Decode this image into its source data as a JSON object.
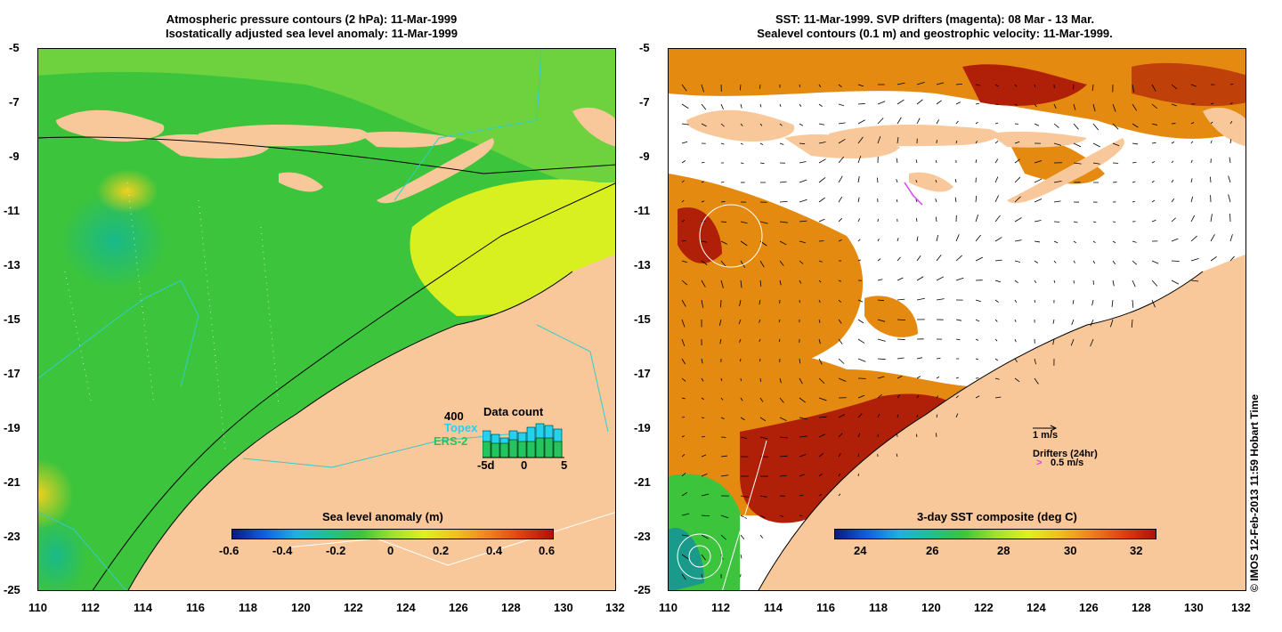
{
  "left_panel": {
    "title_line1": "Atmospheric pressure contours (2 hPa): 11-Mar-1999",
    "title_line2": "Isostatically adjusted sea level anomaly: 11-Mar-1999",
    "y_ticks": [
      "-5",
      "-7",
      "-9",
      "-11",
      "-13",
      "-15",
      "-17",
      "-19",
      "-21",
      "-23",
      "-25"
    ],
    "x_ticks": [
      "110",
      "112",
      "114",
      "116",
      "118",
      "120",
      "122",
      "124",
      "126",
      "128",
      "130",
      "132"
    ],
    "colorbar": {
      "label": "Sea level anomaly (m)",
      "ticks": [
        "-0.6",
        "-0.4",
        "-0.2",
        "0",
        "0.2",
        "0.4",
        "0.6"
      ]
    },
    "data_count": {
      "title": "Data count",
      "scale_label": "400",
      "legend": [
        {
          "name": "Topex",
          "color": "#22d3ee"
        },
        {
          "name": "ERS-2",
          "color": "#22c55e"
        }
      ],
      "x_ticks": [
        "-5d",
        "0",
        "5"
      ]
    }
  },
  "right_panel": {
    "title_line1": "SST: 11-Mar-1999. SVP drifters (magenta): 08 Mar - 13 Mar.",
    "title_line2": "Sealevel contours (0.1 m) and geostrophic velocity: 11-Mar-1999.",
    "y_ticks": [
      "-5",
      "-7",
      "-9",
      "-11",
      "-13",
      "-15",
      "-17",
      "-19",
      "-21",
      "-23",
      "-25"
    ],
    "x_ticks": [
      "110",
      "112",
      "114",
      "116",
      "118",
      "120",
      "122",
      "124",
      "126",
      "128",
      "130",
      "132"
    ],
    "colorbar": {
      "label": "3-day SST composite (deg C)",
      "ticks": [
        "24",
        "26",
        "28",
        "30",
        "32"
      ]
    },
    "velocity_legend": {
      "speed_label": "1 m/s",
      "drifters_label": "Drifters (24hr)",
      "drifter_speed_label": "0.5 m/s",
      "drifter_color": "#d946ef"
    }
  },
  "copyright": "© IMOS 12-Feb-2013 11:59 Hobart Time",
  "colors": {
    "land": "#f9c89a",
    "ocean_green": "#3cc43c",
    "ocean_yellow": "#d8f020",
    "sst_orange": "#e58a10",
    "sst_red": "#b02008",
    "contour_cyan": "#33cccc"
  }
}
